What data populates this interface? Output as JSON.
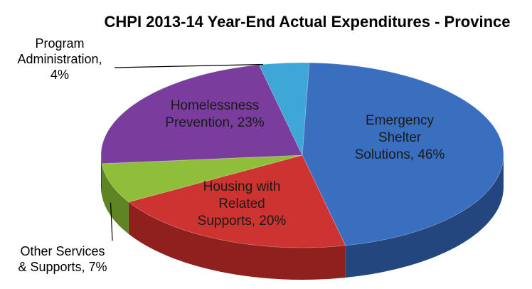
{
  "chart_data": {
    "type": "pie",
    "title": "CHPI 2013-14 Year-End Actual Expenditures - Province",
    "slices": [
      {
        "name": "Emergency Shelter Solutions",
        "value": 46,
        "label": [
          "Emergency",
          "Shelter",
          "Solutions, 46%"
        ],
        "color": "#3a6fbf",
        "side": "#24467e"
      },
      {
        "name": "Housing with Related Supports",
        "value": 20,
        "label": [
          "Housing with",
          "Related",
          "Supports, 20%"
        ],
        "color": "#cd3330",
        "side": "#8f201e"
      },
      {
        "name": "Other Services & Supports",
        "value": 7,
        "label": [
          "Other Services",
          "& Supports, 7%"
        ],
        "color": "#8fbf3a",
        "side": "#5e8423"
      },
      {
        "name": "Homelessness Prevention",
        "value": 23,
        "label": [
          "Homelessness",
          "Prevention, 23%"
        ],
        "color": "#7a3d9e",
        "side": "#52266b"
      },
      {
        "name": "Program Administration",
        "value": 4,
        "label": [
          "Program",
          "Administration,",
          "4%"
        ],
        "color": "#3fa6d8",
        "side": "#2a7397"
      }
    ]
  }
}
